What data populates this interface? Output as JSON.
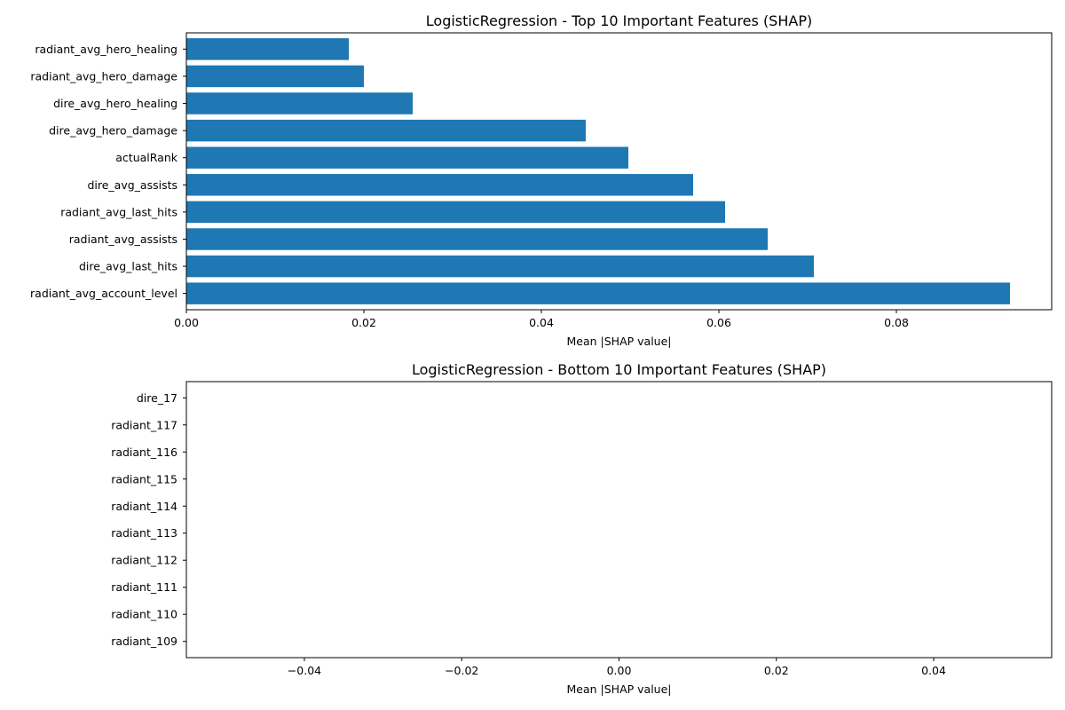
{
  "chart_data": [
    {
      "type": "bar",
      "orientation": "horizontal",
      "title": "LogisticRegression - Top 10 Important Features (SHAP)",
      "xlabel": "Mean |SHAP value|",
      "ylabel": "",
      "xlim": [
        0,
        0.0975
      ],
      "xticks": [
        0.0,
        0.02,
        0.04,
        0.06,
        0.08
      ],
      "xtick_labels": [
        "0.00",
        "0.02",
        "0.04",
        "0.06",
        "0.08"
      ],
      "grid": false,
      "bar_color": "#1f77b4",
      "categories": [
        "radiant_avg_account_level",
        "dire_avg_last_hits",
        "radiant_avg_assists",
        "radiant_avg_last_hits",
        "dire_avg_assists",
        "actualRank",
        "dire_avg_hero_damage",
        "dire_avg_hero_healing",
        "radiant_avg_hero_damage",
        "radiant_avg_hero_healing"
      ],
      "values": [
        0.0928,
        0.0707,
        0.0655,
        0.0607,
        0.0571,
        0.0498,
        0.045,
        0.0255,
        0.02,
        0.0183
      ]
    },
    {
      "type": "bar",
      "orientation": "horizontal",
      "title": "LogisticRegression - Bottom 10 Important Features (SHAP)",
      "xlabel": "Mean |SHAP value|",
      "ylabel": "",
      "xlim": [
        -0.055,
        0.055
      ],
      "xticks": [
        -0.04,
        -0.02,
        0.0,
        0.02,
        0.04
      ],
      "xtick_labels": [
        "−0.04",
        "−0.02",
        "0.00",
        "0.02",
        "0.04"
      ],
      "grid": false,
      "bar_color": "#1f77b4",
      "categories": [
        "radiant_109",
        "radiant_110",
        "radiant_111",
        "radiant_112",
        "radiant_113",
        "radiant_114",
        "radiant_115",
        "radiant_116",
        "radiant_117",
        "dire_17"
      ],
      "values": [
        0,
        0,
        0,
        0,
        0,
        0,
        0,
        0,
        0,
        0
      ]
    }
  ]
}
